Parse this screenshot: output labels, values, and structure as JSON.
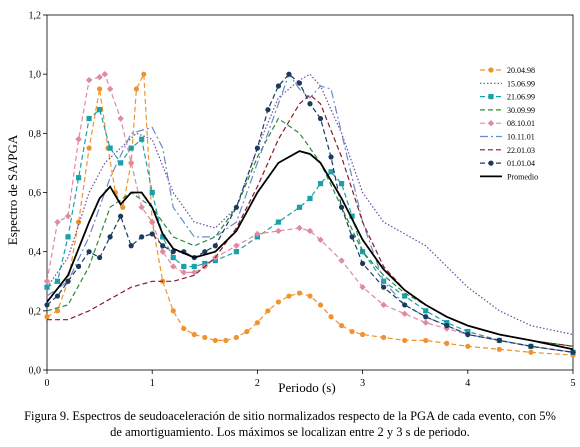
{
  "chart_data": {
    "type": "line",
    "xlabel": "Periodo (s)",
    "ylabel": "Espectro de SA/PGA",
    "xlim": [
      0,
      5
    ],
    "ylim": [
      0,
      1.2
    ],
    "xticks": [
      "0",
      "1",
      "2",
      "3",
      "4",
      "5"
    ],
    "yticks": [
      "0,0",
      "0,2",
      "0,4",
      "0,6",
      "0,8",
      "1,0",
      "1,2"
    ],
    "grid": false,
    "legend_position": "top-right",
    "series": [
      {
        "name": "20.04.98",
        "color": "#f0922e",
        "style": "dashed",
        "marker": "circle",
        "x": [
          0,
          0.1,
          0.2,
          0.3,
          0.4,
          0.5,
          0.58,
          0.65,
          0.72,
          0.8,
          0.85,
          0.92,
          1.0,
          1.1,
          1.2,
          1.3,
          1.4,
          1.5,
          1.6,
          1.7,
          1.8,
          1.9,
          2.0,
          2.1,
          2.2,
          2.3,
          2.4,
          2.5,
          2.6,
          2.7,
          2.8,
          2.9,
          3.0,
          3.2,
          3.4,
          3.6,
          3.8,
          4.0,
          4.3,
          4.6,
          5.0
        ],
        "y": [
          0.18,
          0.2,
          0.3,
          0.5,
          0.75,
          0.95,
          0.75,
          0.6,
          0.55,
          0.7,
          0.95,
          1.0,
          0.5,
          0.3,
          0.2,
          0.14,
          0.12,
          0.11,
          0.1,
          0.1,
          0.11,
          0.13,
          0.16,
          0.2,
          0.23,
          0.25,
          0.26,
          0.25,
          0.22,
          0.18,
          0.15,
          0.13,
          0.12,
          0.11,
          0.1,
          0.1,
          0.09,
          0.08,
          0.07,
          0.06,
          0.05
        ]
      },
      {
        "name": "15.06.99",
        "color": "#6a4aa0",
        "style": "dotted",
        "marker": "none",
        "x": [
          0,
          0.2,
          0.4,
          0.55,
          0.7,
          0.85,
          1.0,
          1.2,
          1.4,
          1.6,
          1.8,
          2.0,
          2.2,
          2.4,
          2.5,
          2.6,
          2.8,
          3.0,
          3.2,
          3.4,
          3.6,
          3.8,
          4.0,
          4.3,
          4.6,
          5.0
        ],
        "y": [
          0.28,
          0.38,
          0.6,
          0.7,
          0.75,
          0.8,
          0.78,
          0.6,
          0.5,
          0.48,
          0.55,
          0.75,
          0.92,
          0.98,
          1.0,
          0.96,
          0.8,
          0.6,
          0.5,
          0.46,
          0.42,
          0.35,
          0.28,
          0.2,
          0.15,
          0.12
        ]
      },
      {
        "name": "21.06.99",
        "color": "#1aa0a8",
        "style": "dashed",
        "marker": "square",
        "x": [
          0,
          0.1,
          0.2,
          0.3,
          0.4,
          0.5,
          0.6,
          0.7,
          0.8,
          0.9,
          1.0,
          1.1,
          1.2,
          1.3,
          1.4,
          1.5,
          1.6,
          1.8,
          2.0,
          2.2,
          2.4,
          2.5,
          2.6,
          2.7,
          2.8,
          2.9,
          3.0,
          3.2,
          3.4,
          3.6,
          3.8,
          4.0,
          4.3,
          4.6,
          5.0
        ],
        "y": [
          0.28,
          0.3,
          0.45,
          0.65,
          0.85,
          0.88,
          0.75,
          0.7,
          0.75,
          0.78,
          0.6,
          0.45,
          0.38,
          0.35,
          0.35,
          0.36,
          0.37,
          0.4,
          0.45,
          0.5,
          0.55,
          0.58,
          0.63,
          0.67,
          0.63,
          0.52,
          0.4,
          0.3,
          0.25,
          0.2,
          0.16,
          0.13,
          0.1,
          0.08,
          0.06
        ]
      },
      {
        "name": "30.09.99",
        "color": "#2a8a3a",
        "style": "dashed",
        "marker": "none",
        "x": [
          0,
          0.2,
          0.4,
          0.6,
          0.8,
          1.0,
          1.2,
          1.4,
          1.6,
          1.8,
          2.0,
          2.2,
          2.4,
          2.5,
          2.6,
          2.8,
          3.0,
          3.2,
          3.4,
          3.6,
          3.8,
          4.0,
          4.3,
          4.6,
          5.0
        ],
        "y": [
          0.2,
          0.22,
          0.35,
          0.55,
          0.6,
          0.55,
          0.45,
          0.42,
          0.45,
          0.55,
          0.72,
          0.85,
          0.8,
          0.75,
          0.7,
          0.55,
          0.4,
          0.32,
          0.26,
          0.22,
          0.18,
          0.15,
          0.12,
          0.1,
          0.08
        ]
      },
      {
        "name": "08.10.01",
        "color": "#e08aa0",
        "style": "dashed",
        "marker": "diamond",
        "x": [
          0,
          0.1,
          0.2,
          0.3,
          0.4,
          0.5,
          0.55,
          0.6,
          0.7,
          0.8,
          0.9,
          1.0,
          1.1,
          1.2,
          1.3,
          1.4,
          1.5,
          1.6,
          1.8,
          2.0,
          2.2,
          2.4,
          2.5,
          2.6,
          2.8,
          3.0,
          3.2,
          3.4,
          3.6,
          3.8,
          4.0,
          4.3,
          4.6,
          5.0
        ],
        "y": [
          0.3,
          0.5,
          0.52,
          0.78,
          0.98,
          0.99,
          1.0,
          0.95,
          0.85,
          0.7,
          0.55,
          0.5,
          0.4,
          0.35,
          0.33,
          0.33,
          0.35,
          0.38,
          0.42,
          0.46,
          0.47,
          0.48,
          0.47,
          0.44,
          0.37,
          0.28,
          0.22,
          0.19,
          0.16,
          0.14,
          0.12,
          0.1,
          0.08,
          0.06
        ]
      },
      {
        "name": "10.11.01",
        "color": "#6a8ac8",
        "style": "dashdot",
        "marker": "none",
        "x": [
          0,
          0.2,
          0.4,
          0.6,
          0.8,
          1.0,
          1.1,
          1.2,
          1.4,
          1.6,
          1.8,
          2.0,
          2.2,
          2.3,
          2.4,
          2.5,
          2.6,
          2.7,
          2.8,
          3.0,
          3.2,
          3.4,
          3.6,
          3.8,
          4.0,
          4.3,
          4.6,
          5.0
        ],
        "y": [
          0.25,
          0.3,
          0.45,
          0.65,
          0.8,
          0.82,
          0.75,
          0.55,
          0.45,
          0.45,
          0.5,
          0.7,
          0.9,
          1.0,
          0.95,
          0.92,
          0.96,
          0.95,
          0.8,
          0.5,
          0.3,
          0.22,
          0.18,
          0.15,
          0.12,
          0.1,
          0.08,
          0.06
        ]
      },
      {
        "name": "22.01.03",
        "color": "#8a1a2a",
        "style": "dashed",
        "marker": "none",
        "x": [
          0,
          0.2,
          0.4,
          0.6,
          0.8,
          1.0,
          1.2,
          1.4,
          1.6,
          1.8,
          2.0,
          2.2,
          2.4,
          2.5,
          2.6,
          2.8,
          3.0,
          3.2,
          3.4,
          3.6,
          3.8,
          4.0,
          4.3,
          4.6,
          5.0
        ],
        "y": [
          0.17,
          0.17,
          0.2,
          0.24,
          0.28,
          0.3,
          0.3,
          0.32,
          0.38,
          0.48,
          0.62,
          0.78,
          0.9,
          0.93,
          0.9,
          0.72,
          0.5,
          0.35,
          0.27,
          0.22,
          0.18,
          0.15,
          0.12,
          0.1,
          0.08
        ]
      },
      {
        "name": "01.01.04",
        "color": "#1a3a5e",
        "style": "dashed",
        "marker": "circle",
        "x": [
          0,
          0.1,
          0.2,
          0.3,
          0.4,
          0.5,
          0.6,
          0.7,
          0.8,
          0.9,
          1.0,
          1.1,
          1.2,
          1.3,
          1.4,
          1.5,
          1.6,
          1.8,
          2.0,
          2.1,
          2.2,
          2.3,
          2.4,
          2.5,
          2.6,
          2.7,
          2.8,
          2.9,
          3.0,
          3.2,
          3.4,
          3.6,
          3.8,
          4.0,
          4.3,
          4.6,
          5.0
        ],
        "y": [
          0.22,
          0.25,
          0.3,
          0.35,
          0.4,
          0.38,
          0.45,
          0.52,
          0.42,
          0.45,
          0.46,
          0.42,
          0.4,
          0.4,
          0.38,
          0.4,
          0.42,
          0.55,
          0.75,
          0.88,
          0.96,
          1.0,
          0.97,
          0.9,
          0.85,
          0.72,
          0.55,
          0.45,
          0.36,
          0.28,
          0.22,
          0.18,
          0.15,
          0.12,
          0.1,
          0.08,
          0.06
        ]
      },
      {
        "name": "Promedio",
        "color": "#000000",
        "style": "solid",
        "marker": "none",
        "x": [
          0,
          0.2,
          0.4,
          0.5,
          0.6,
          0.7,
          0.8,
          0.9,
          1.0,
          1.1,
          1.2,
          1.4,
          1.6,
          1.8,
          2.0,
          2.2,
          2.4,
          2.5,
          2.6,
          2.8,
          3.0,
          3.2,
          3.4,
          3.6,
          3.8,
          4.0,
          4.3,
          4.6,
          5.0
        ],
        "y": [
          0.23,
          0.32,
          0.5,
          0.58,
          0.62,
          0.56,
          0.6,
          0.6,
          0.55,
          0.46,
          0.41,
          0.38,
          0.4,
          0.47,
          0.6,
          0.7,
          0.74,
          0.73,
          0.7,
          0.58,
          0.44,
          0.34,
          0.27,
          0.22,
          0.18,
          0.15,
          0.12,
          0.1,
          0.07
        ]
      }
    ]
  },
  "caption": {
    "line1": "Figura 9. Espectros de seudoaceleración de sitio normalizados respecto de la PGA de cada evento, con 5%",
    "line2": "de amortiguamiento. Los máximos se localizan entre 2 y 3 s de periodo."
  }
}
